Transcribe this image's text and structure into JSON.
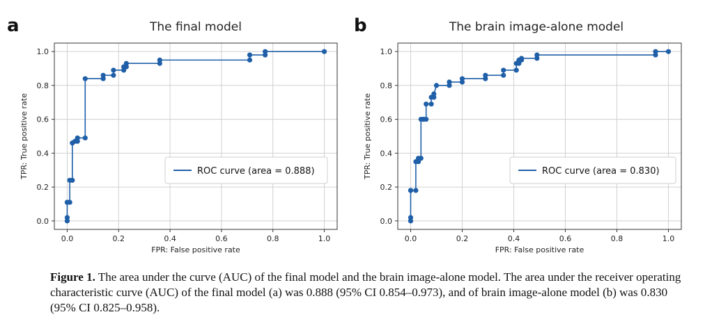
{
  "chart_data": [
    {
      "type": "line",
      "panel_label": "a",
      "title": "The final model",
      "xlabel": "FPR: False positive rate",
      "ylabel": "TPR: True positive rate",
      "xlim": [
        -0.05,
        1.05
      ],
      "ylim": [
        -0.05,
        1.05
      ],
      "xticks": [
        "0.0",
        "0.2",
        "0.4",
        "0.6",
        "0.8",
        "1.0"
      ],
      "yticks": [
        "0.0",
        "0.2",
        "0.4",
        "0.6",
        "0.8",
        "1.0"
      ],
      "grid": true,
      "legend_position": "center-right",
      "series": [
        {
          "name": "ROC curve (area = 0.888)",
          "color": "#1f5fa8",
          "x": [
            0.0,
            0.0,
            0.0,
            0.0,
            0.01,
            0.01,
            0.02,
            0.02,
            0.02,
            0.03,
            0.04,
            0.04,
            0.07,
            0.07,
            0.14,
            0.14,
            0.18,
            0.18,
            0.22,
            0.22,
            0.23,
            0.23,
            0.36,
            0.36,
            0.71,
            0.71,
            0.77,
            0.77,
            1.0
          ],
          "y": [
            0.0,
            0.02,
            0.11,
            0.11,
            0.11,
            0.24,
            0.24,
            0.46,
            0.46,
            0.47,
            0.47,
            0.49,
            0.49,
            0.84,
            0.84,
            0.86,
            0.86,
            0.89,
            0.89,
            0.91,
            0.91,
            0.93,
            0.93,
            0.95,
            0.95,
            0.98,
            0.98,
            1.0,
            1.0
          ]
        }
      ]
    },
    {
      "type": "line",
      "panel_label": "b",
      "title": "The brain image-alone model",
      "xlabel": "FPR: False positive rate",
      "ylabel": "TPR: True positive rate",
      "xlim": [
        -0.05,
        1.05
      ],
      "ylim": [
        -0.05,
        1.05
      ],
      "xticks": [
        "0.0",
        "0.2",
        "0.4",
        "0.6",
        "0.8",
        "1.0"
      ],
      "yticks": [
        "0.0",
        "0.2",
        "0.4",
        "0.6",
        "0.8",
        "1.0"
      ],
      "grid": true,
      "legend_position": "center-right",
      "series": [
        {
          "name": "ROC curve (area = 0.830)",
          "color": "#1f5fa8",
          "x": [
            0.0,
            0.0,
            0.0,
            0.0,
            0.02,
            0.02,
            0.03,
            0.03,
            0.04,
            0.04,
            0.05,
            0.05,
            0.06,
            0.06,
            0.08,
            0.08,
            0.09,
            0.09,
            0.1,
            0.15,
            0.15,
            0.2,
            0.2,
            0.29,
            0.29,
            0.36,
            0.36,
            0.41,
            0.41,
            0.42,
            0.42,
            0.43,
            0.43,
            0.49,
            0.49,
            0.95,
            0.95,
            1.0
          ],
          "y": [
            0.0,
            0.02,
            0.18,
            0.18,
            0.18,
            0.35,
            0.35,
            0.37,
            0.37,
            0.6,
            0.6,
            0.6,
            0.6,
            0.69,
            0.69,
            0.73,
            0.73,
            0.75,
            0.8,
            0.8,
            0.82,
            0.82,
            0.84,
            0.84,
            0.86,
            0.86,
            0.89,
            0.89,
            0.93,
            0.93,
            0.95,
            0.95,
            0.96,
            0.96,
            0.98,
            0.98,
            1.0,
            1.0
          ]
        }
      ]
    }
  ],
  "caption": {
    "label": "Figure 1.",
    "text": "The area under the curve (AUC) of the final model and the brain image-alone model. The area under the receiver operating characteristic curve (AUC) of the final model (a) was 0.888 (95% CI 0.854–0.973), and of brain image-alone model (b) was 0.830 (95% CI 0.825–0.958)."
  }
}
